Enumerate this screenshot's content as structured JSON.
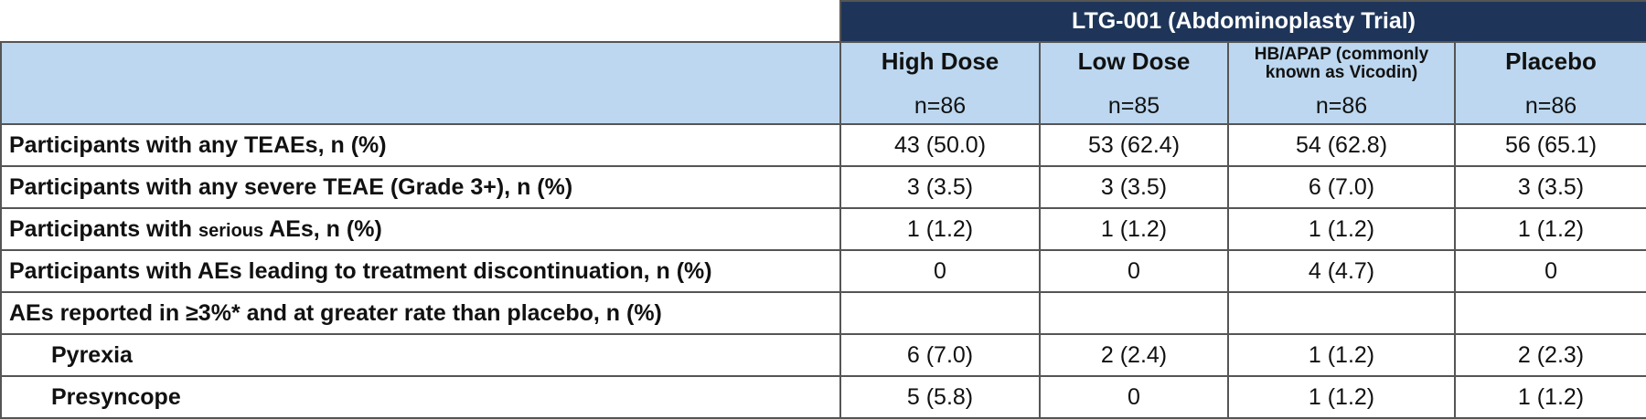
{
  "trial_title": "LTG-001 (Abdominoplasty Trial)",
  "groups": [
    {
      "name": "High Dose",
      "n": "n=86"
    },
    {
      "name": "Low Dose",
      "n": "n=85"
    },
    {
      "name": "HB/APAP (commonly known as Vicodin)",
      "n": "n=86"
    },
    {
      "name": "Placebo",
      "n": "n=86"
    }
  ],
  "rows": [
    {
      "label": "Participants with any TEAEs, n (%)",
      "values": [
        "43 (50.0)",
        "53 (62.4)",
        "54 (62.8)",
        "56 (65.1)"
      ]
    },
    {
      "label": "Participants with any severe TEAE (Grade 3+), n (%)",
      "values": [
        "3 (3.5)",
        "3 (3.5)",
        "6 (7.0)",
        "3 (3.5)"
      ]
    },
    {
      "label_a": "Participants with ",
      "label_b": "serious",
      "label_c": " AEs, n (%)",
      "values": [
        "1 (1.2)",
        "1 (1.2)",
        "1 (1.2)",
        "1 (1.2)"
      ]
    },
    {
      "label": "Participants with AEs leading to treatment discontinuation, n (%)",
      "values": [
        "0",
        "0",
        "4 (4.7)",
        "0"
      ]
    },
    {
      "label": "AEs reported in ≥3%* and at greater rate than placebo, n (%)",
      "values": [
        "",
        "",
        "",
        ""
      ]
    },
    {
      "label": "Pyrexia",
      "values": [
        "6 (7.0)",
        "2 (2.4)",
        "1 (1.2)",
        "2 (2.3)"
      ]
    },
    {
      "label": "Presyncope",
      "values": [
        "5 (5.8)",
        "0",
        "1 (1.2)",
        "1 (1.2)"
      ]
    }
  ]
}
